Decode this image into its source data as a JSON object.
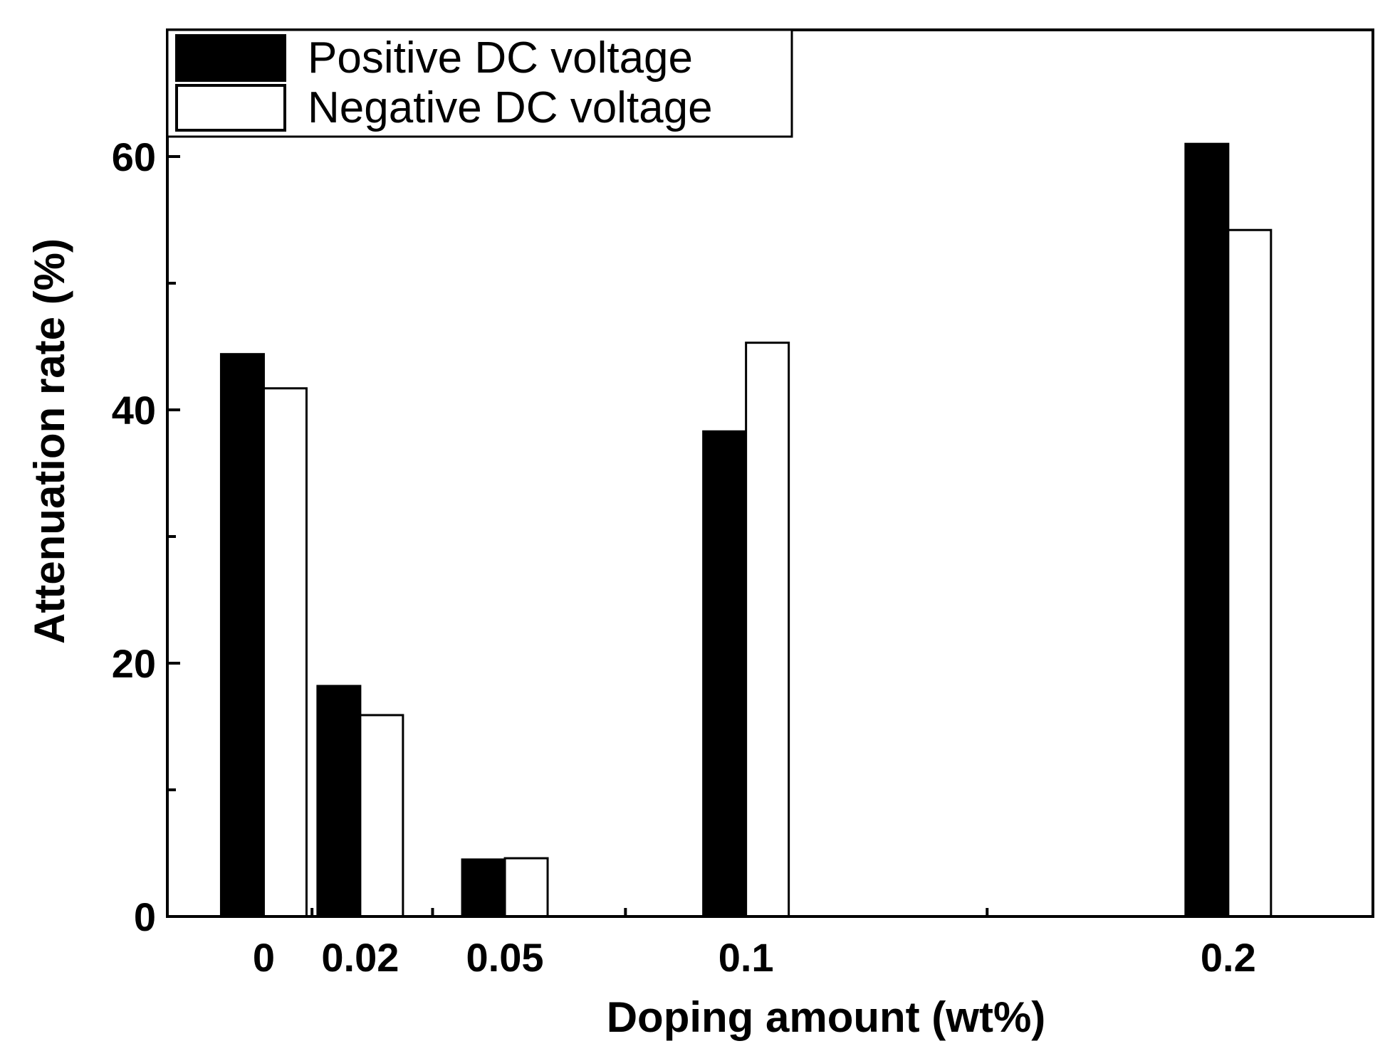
{
  "chart_data": {
    "type": "bar",
    "title": "",
    "xlabel": "Doping amount (wt%)",
    "ylabel": "Attenuation rate (%)",
    "ylim": [
      0,
      70
    ],
    "yticks": [
      0,
      20,
      40,
      60
    ],
    "yticks_minor": [
      10,
      30,
      50
    ],
    "grid": false,
    "legend_position": "top-left",
    "categories": [
      "0",
      "0.02",
      "0.05",
      "0.1",
      "0.2"
    ],
    "category_positions": [
      0,
      0.02,
      0.05,
      0.1,
      0.2
    ],
    "x_minor_ticks": [
      0.01,
      0.035,
      0.075,
      0.15
    ],
    "xlim": [
      -0.02,
      0.23
    ],
    "series": [
      {
        "name": "Positive DC voltage",
        "fill": "#000000",
        "values": [
          44.4,
          18.2,
          4.5,
          38.3,
          61.0
        ]
      },
      {
        "name": "Negative DC voltage",
        "fill": "#ffffff",
        "values": [
          41.7,
          15.9,
          4.6,
          45.3,
          54.2
        ]
      }
    ]
  }
}
